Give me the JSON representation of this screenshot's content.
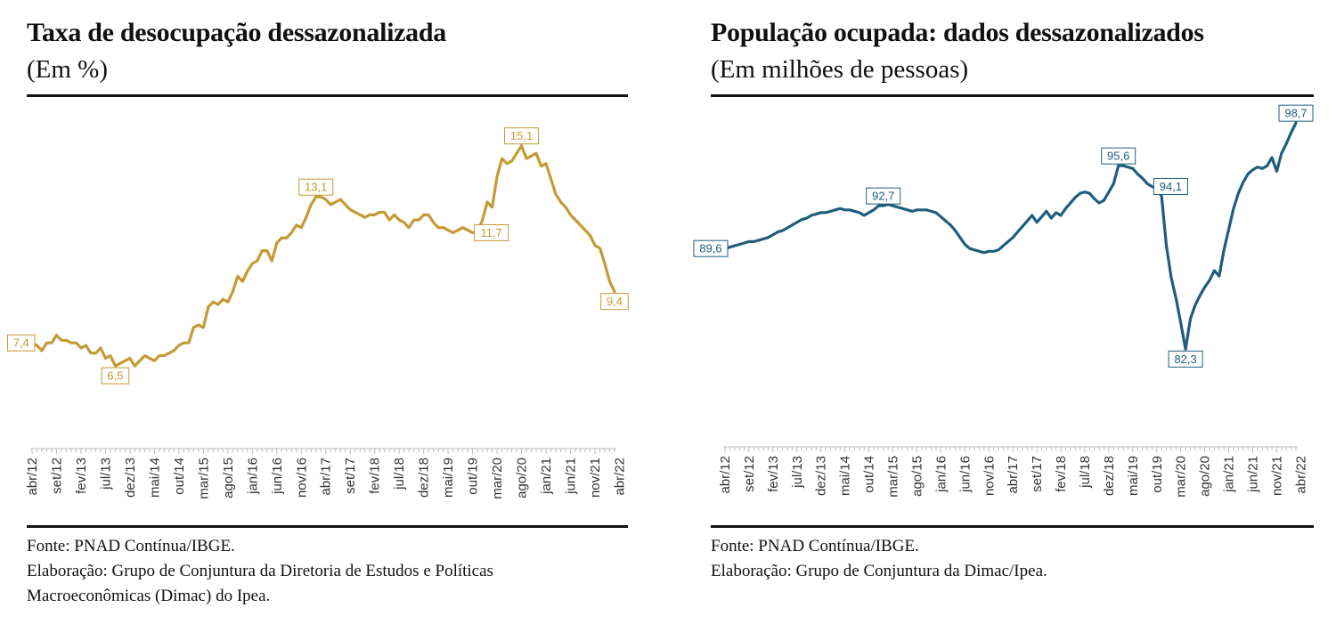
{
  "chart_data": [
    {
      "type": "line",
      "title": "Taxa de desocupação dessazonalizada",
      "subtitle": "(Em %)",
      "source": "Fonte: PNAD Contínua/IBGE.",
      "credit_lines": [
        "Elaboração: Grupo de Conjuntura da Diretoria de Estudos e Políticas",
        "Macroeconômicas (Dimac) do Ipea."
      ],
      "color": "#C49A35",
      "ylim": [
        4,
        17
      ],
      "tick_labels": [
        "abr/12",
        "set/12",
        "fev/13",
        "jul/13",
        "dez/13",
        "mai/14",
        "out/14",
        "mar/15",
        "ago/15",
        "jan/16",
        "jun/16",
        "nov/16",
        "abr/17",
        "set/17",
        "fev/18",
        "jul/18",
        "dez/18",
        "mai/19",
        "out/19",
        "mar/20",
        "ago/20",
        "jan/21",
        "jun/21",
        "nov/21",
        "abr/22"
      ],
      "values": [
        7.4,
        7.3,
        7.1,
        7.4,
        7.4,
        7.7,
        7.5,
        7.5,
        7.4,
        7.4,
        7.2,
        7.3,
        7.0,
        7.0,
        7.2,
        6.8,
        6.9,
        6.5,
        6.6,
        6.7,
        6.8,
        6.5,
        6.7,
        6.9,
        6.8,
        6.7,
        6.9,
        6.9,
        7.0,
        7.1,
        7.3,
        7.4,
        7.4,
        8.0,
        8.1,
        8.0,
        8.8,
        9.0,
        8.9,
        9.1,
        9.0,
        9.4,
        10.0,
        9.8,
        10.2,
        10.5,
        10.6,
        11.0,
        11.0,
        10.6,
        11.3,
        11.5,
        11.5,
        11.7,
        12.0,
        11.9,
        12.3,
        12.8,
        13.1,
        13.1,
        13.0,
        12.8,
        12.9,
        13.0,
        12.8,
        12.6,
        12.5,
        12.4,
        12.3,
        12.4,
        12.4,
        12.5,
        12.5,
        12.2,
        12.4,
        12.2,
        12.1,
        11.9,
        12.2,
        12.2,
        12.4,
        12.4,
        12.1,
        11.9,
        11.9,
        11.8,
        11.7,
        11.8,
        11.9,
        11.8,
        11.7,
        11.7,
        12.2,
        12.9,
        12.7,
        13.9,
        14.6,
        14.4,
        14.5,
        14.8,
        15.1,
        14.6,
        14.7,
        14.8,
        14.3,
        14.4,
        13.8,
        13.2,
        12.9,
        12.7,
        12.4,
        12.2,
        12.0,
        11.8,
        11.6,
        11.2,
        11.1,
        10.5,
        9.8,
        9.4
      ],
      "data_labels": [
        {
          "i": 0,
          "text": "7,4",
          "side": "left"
        },
        {
          "i": 17,
          "text": "6,5",
          "side": "below"
        },
        {
          "i": 58,
          "text": "13,1",
          "side": "above"
        },
        {
          "i": 90,
          "text": "11,7",
          "side": "right"
        },
        {
          "i": 100,
          "text": "15,1",
          "side": "above"
        },
        {
          "i": 119,
          "text": "9,4",
          "side": "below"
        }
      ]
    },
    {
      "type": "line",
      "title": "População ocupada: dados dessazonalizados",
      "subtitle": "(Em milhões de pessoas)",
      "source": "Fonte: PNAD Contínua/IBGE.",
      "credit_lines": [
        "Elaboração: Grupo de Conjuntura da Dimac/Ipea."
      ],
      "color": "#1F5D7E",
      "ylim": [
        78,
        100
      ],
      "tick_labels": [
        "abr/12",
        "set/12",
        "fev/13",
        "jul/13",
        "dez/13",
        "mai/14",
        "out/14",
        "mar/15",
        "ago/15",
        "jan/16",
        "jun/16",
        "nov/16",
        "abr/17",
        "set/17",
        "fev/18",
        "jul/18",
        "dez/18",
        "mai/19",
        "out/19",
        "mar/20",
        "ago/20",
        "jan/21",
        "jun/21",
        "nov/21",
        "abr/22"
      ],
      "values": [
        89.6,
        89.7,
        89.8,
        89.9,
        90.0,
        90.1,
        90.1,
        90.2,
        90.3,
        90.4,
        90.6,
        90.8,
        90.9,
        91.1,
        91.3,
        91.5,
        91.7,
        91.8,
        92.0,
        92.1,
        92.2,
        92.2,
        92.3,
        92.4,
        92.5,
        92.4,
        92.4,
        92.3,
        92.2,
        92.0,
        92.2,
        92.4,
        92.7,
        92.7,
        92.8,
        92.7,
        92.6,
        92.5,
        92.4,
        92.3,
        92.4,
        92.4,
        92.4,
        92.3,
        92.2,
        91.9,
        91.6,
        91.3,
        90.9,
        90.4,
        89.9,
        89.6,
        89.5,
        89.4,
        89.3,
        89.4,
        89.4,
        89.5,
        89.8,
        90.1,
        90.4,
        90.8,
        91.2,
        91.6,
        92.0,
        91.5,
        91.9,
        92.3,
        91.8,
        92.2,
        92.0,
        92.5,
        92.9,
        93.3,
        93.6,
        93.7,
        93.6,
        93.2,
        92.9,
        93.1,
        93.7,
        94.3,
        95.6,
        95.6,
        95.5,
        95.4,
        95.0,
        94.7,
        94.3,
        94.1,
        93.9,
        93.4,
        89.8,
        87.5,
        86.0,
        84.2,
        82.3,
        84.5,
        85.5,
        86.2,
        86.8,
        87.3,
        88.0,
        87.6,
        89.5,
        91.0,
        92.5,
        93.6,
        94.4,
        95.0,
        95.3,
        95.5,
        95.4,
        95.6,
        96.2,
        95.2,
        96.5,
        97.2,
        98.0,
        98.7
      ],
      "data_labels": [
        {
          "i": 0,
          "text": "89,6",
          "side": "left"
        },
        {
          "i": 33,
          "text": "92,7",
          "side": "above"
        },
        {
          "i": 82,
          "text": "95,6",
          "side": "above"
        },
        {
          "i": 89,
          "text": "94,1",
          "side": "right"
        },
        {
          "i": 96,
          "text": "82,3",
          "side": "below"
        },
        {
          "i": 119,
          "text": "98,7",
          "side": "above"
        }
      ]
    }
  ]
}
